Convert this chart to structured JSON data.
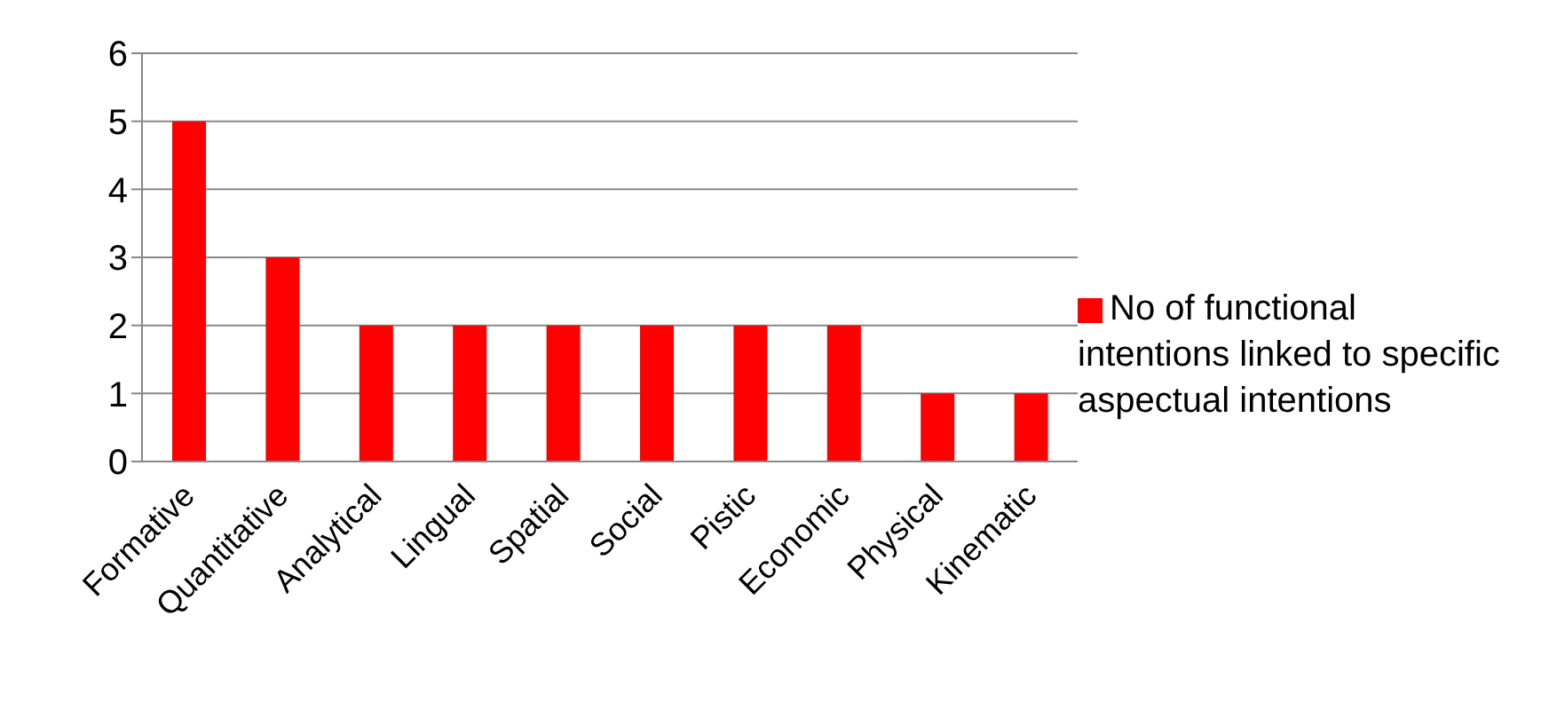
{
  "chart_data": {
    "type": "bar",
    "categories": [
      "Formative",
      "Quantitative",
      "Analytical",
      "Lingual",
      "Spatial",
      "Social",
      "Pistic",
      "Economic",
      "Physical",
      "Kinematic"
    ],
    "series": [
      {
        "name": "No of functional intentions linked to specific aspectual intentions",
        "color": "#ff0000",
        "values": [
          5,
          3,
          2,
          2,
          2,
          2,
          2,
          2,
          1,
          1
        ]
      }
    ],
    "ylim": [
      0,
      6
    ],
    "yticks": [
      0,
      1,
      2,
      3,
      4,
      5,
      6
    ],
    "grid": "y",
    "legend": "right"
  }
}
